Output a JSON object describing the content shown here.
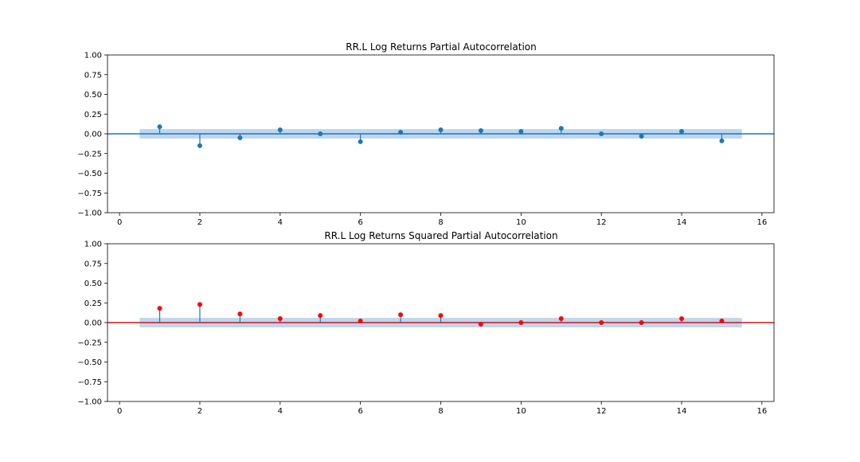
{
  "chart_data": [
    {
      "type": "stem",
      "title": "RR.L Log Returns Partial Autocorrelation",
      "xlabel": "",
      "ylabel": "",
      "xlim": [
        -0.3,
        16.3
      ],
      "ylim": [
        -1.0,
        1.0
      ],
      "x_ticks": [
        "0",
        "2",
        "4",
        "6",
        "8",
        "10",
        "12",
        "14",
        "16"
      ],
      "y_ticks": [
        "1.00",
        "0.75",
        "0.50",
        "0.25",
        "0.00",
        "−0.25",
        "−0.50",
        "−0.75",
        "−1.00"
      ],
      "confidence_band": [
        -0.06,
        0.06
      ],
      "band_x": [
        0.5,
        15.5
      ],
      "grid": false,
      "marker_color": "#1f77b4",
      "stem_color": "#1f77b4",
      "band_color": "#a8c8e8",
      "x": [
        1,
        2,
        3,
        4,
        5,
        6,
        7,
        8,
        9,
        10,
        11,
        12,
        13,
        14,
        15
      ],
      "values": [
        0.09,
        -0.15,
        -0.05,
        0.05,
        0.0,
        -0.1,
        0.02,
        0.05,
        0.04,
        0.03,
        0.07,
        0.0,
        -0.03,
        0.03,
        -0.09
      ]
    },
    {
      "type": "stem",
      "title": "RR.L Log Returns Squared Partial Autocorrelation",
      "xlabel": "",
      "ylabel": "",
      "xlim": [
        -0.3,
        16.3
      ],
      "ylim": [
        -1.0,
        1.0
      ],
      "x_ticks": [
        "0",
        "2",
        "4",
        "6",
        "8",
        "10",
        "12",
        "14",
        "16"
      ],
      "y_ticks": [
        "1.00",
        "0.75",
        "0.50",
        "0.25",
        "0.00",
        "−0.25",
        "−0.50",
        "−0.75",
        "−1.00"
      ],
      "confidence_band": [
        -0.06,
        0.06
      ],
      "band_x": [
        0.5,
        15.5
      ],
      "grid": false,
      "marker_color": "#ff0000",
      "stem_color": "#1f77b4",
      "band_color": "#a8c8e8",
      "x": [
        1,
        2,
        3,
        4,
        5,
        6,
        7,
        8,
        9,
        10,
        11,
        12,
        13,
        14,
        15
      ],
      "values": [
        0.18,
        0.23,
        0.11,
        0.05,
        0.09,
        0.02,
        0.1,
        0.09,
        -0.02,
        0.0,
        0.05,
        0.0,
        0.0,
        0.05,
        0.02
      ]
    }
  ]
}
